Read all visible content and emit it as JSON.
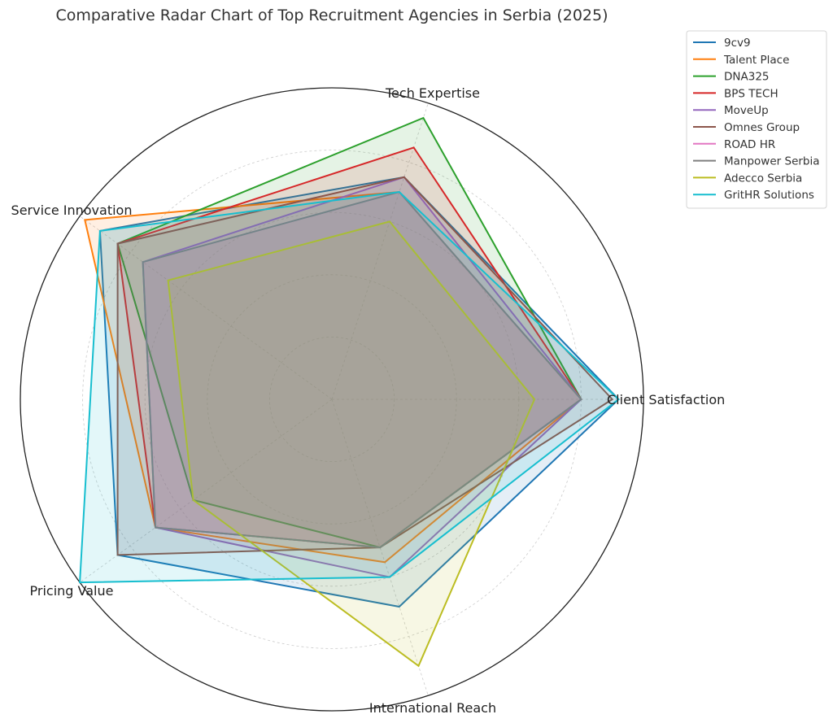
{
  "chart_data": {
    "type": "radar",
    "title": "Comparative Radar Chart of Top Recruitment Agencies in Serbia (2025)",
    "axes": [
      "Client Satisfaction",
      "Tech Expertise",
      "Service Innovation",
      "Pricing Value",
      "International Reach"
    ],
    "rlim": [
      0,
      10
    ],
    "grid": true,
    "legend_position": "top-right",
    "series": [
      {
        "name": "9cv9",
        "color": "#1f77b4",
        "values": [
          9.2,
          7.5,
          9.2,
          8.5,
          7.0
        ]
      },
      {
        "name": "Talent Place",
        "color": "#ff7f0e",
        "values": [
          8.0,
          7.0,
          9.8,
          7.0,
          5.5
        ]
      },
      {
        "name": "DNA325",
        "color": "#2ca02c",
        "values": [
          8.0,
          9.5,
          8.5,
          5.5,
          5.0
        ]
      },
      {
        "name": "BPS TECH",
        "color": "#d62728",
        "values": [
          8.0,
          8.5,
          8.5,
          7.0,
          5.0
        ]
      },
      {
        "name": "MoveUp",
        "color": "#9467bd",
        "values": [
          8.0,
          7.5,
          7.5,
          7.0,
          6.0
        ]
      },
      {
        "name": "Omnes Group",
        "color": "#8c564b",
        "values": [
          9.0,
          7.5,
          8.5,
          8.5,
          5.0
        ]
      },
      {
        "name": "ROAD HR",
        "color": "#e377c2",
        "values": [
          8.0,
          7.0,
          7.5,
          7.0,
          5.0
        ]
      },
      {
        "name": "Manpower Serbia",
        "color": "#7f7f7f",
        "values": [
          8.0,
          7.0,
          7.5,
          7.0,
          5.0
        ]
      },
      {
        "name": "Adecco Serbia",
        "color": "#bcbd22",
        "values": [
          6.5,
          6.0,
          6.5,
          5.5,
          9.0
        ]
      },
      {
        "name": "GritHR Solutions",
        "color": "#17becf",
        "values": [
          9.2,
          7.0,
          9.2,
          10.0,
          6.0
        ]
      }
    ]
  }
}
